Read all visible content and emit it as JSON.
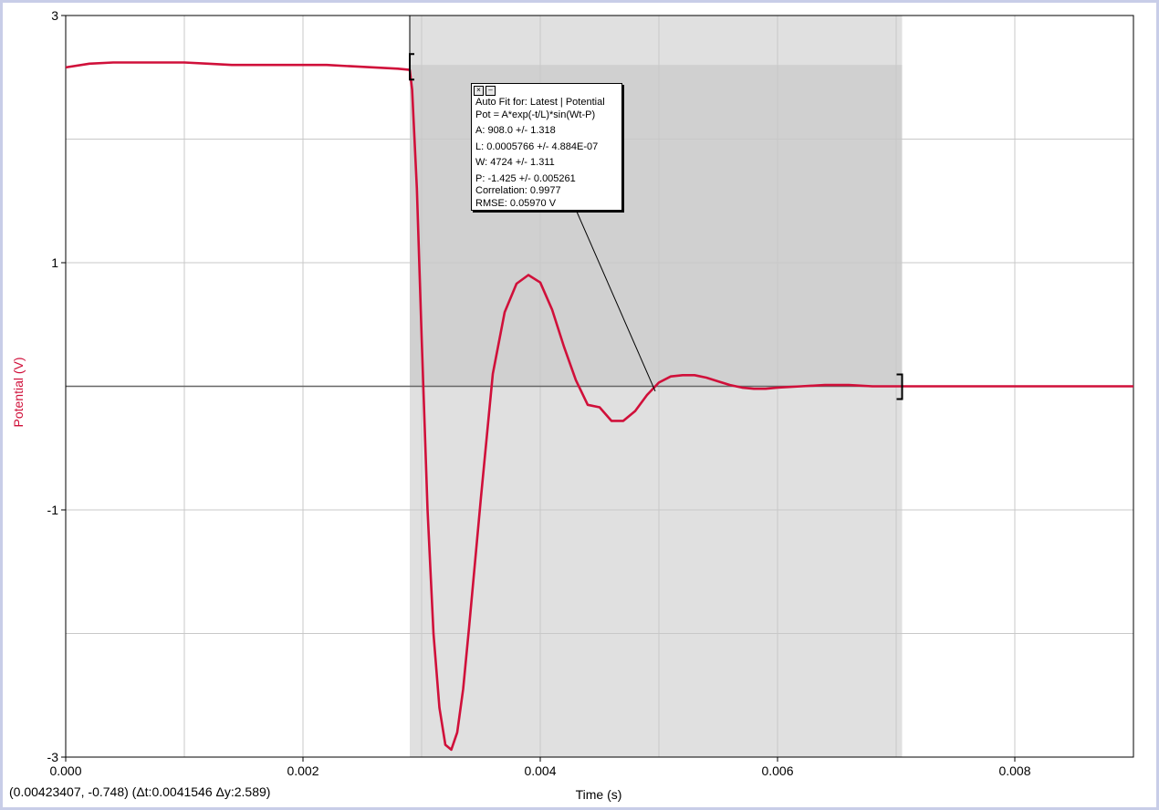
{
  "colors": {
    "series": "#d0103a",
    "selection_light": "#e0e0e0",
    "selection_dark": "#d0d0d0",
    "grid": "#c8c8c8",
    "window_border": "#c8cde8"
  },
  "chart_data": {
    "type": "line",
    "xlabel": "Time (s)",
    "ylabel": "Potential (V)",
    "xlim": [
      0.0,
      0.009
    ],
    "ylim": [
      -3,
      3
    ],
    "x_ticks": [
      "0.000",
      "0.002",
      "0.004",
      "0.006",
      "0.008"
    ],
    "x_tick_values": [
      0.0,
      0.002,
      0.004,
      0.006,
      0.008
    ],
    "y_ticks": [
      "3",
      "1",
      "-1",
      "-3"
    ],
    "y_tick_values": [
      3,
      1,
      -1,
      -3
    ],
    "grid": true,
    "zero_line": true,
    "selection_range": [
      0.0029,
      0.00705
    ],
    "series": [
      {
        "name": "Potential",
        "color": "#d0103a",
        "x": [
          0.0,
          0.0002,
          0.0004,
          0.0006,
          0.0008,
          0.001,
          0.0012,
          0.0014,
          0.0016,
          0.0018,
          0.002,
          0.0022,
          0.0024,
          0.0026,
          0.0028,
          0.0029,
          0.00292,
          0.00296,
          0.003,
          0.00305,
          0.0031,
          0.00315,
          0.0032,
          0.00325,
          0.0033,
          0.00335,
          0.0034,
          0.0035,
          0.0036,
          0.0037,
          0.0038,
          0.0039,
          0.004,
          0.0041,
          0.0042,
          0.0043,
          0.0044,
          0.0045,
          0.0046,
          0.0047,
          0.0048,
          0.0049,
          0.005,
          0.0051,
          0.0052,
          0.0053,
          0.0054,
          0.0055,
          0.0056,
          0.0057,
          0.0058,
          0.0059,
          0.006,
          0.0062,
          0.0064,
          0.0066,
          0.0068,
          0.007,
          0.0072,
          0.0074,
          0.0076,
          0.0078,
          0.008,
          0.0082,
          0.0084,
          0.0086,
          0.0088,
          0.009
        ],
        "y": [
          2.58,
          2.61,
          2.62,
          2.62,
          2.62,
          2.62,
          2.61,
          2.6,
          2.6,
          2.6,
          2.6,
          2.6,
          2.59,
          2.58,
          2.57,
          2.56,
          2.4,
          1.6,
          0.4,
          -1.0,
          -2.0,
          -2.6,
          -2.9,
          -2.94,
          -2.8,
          -2.45,
          -1.95,
          -0.9,
          0.1,
          0.6,
          0.83,
          0.9,
          0.84,
          0.62,
          0.32,
          0.05,
          -0.15,
          -0.17,
          -0.28,
          -0.28,
          -0.2,
          -0.07,
          0.03,
          0.08,
          0.09,
          0.09,
          0.07,
          0.04,
          0.01,
          -0.01,
          -0.02,
          -0.02,
          -0.01,
          0.0,
          0.01,
          0.01,
          0.0,
          0.0,
          0.0,
          0.0,
          0.0,
          0.0,
          0.0,
          0.0,
          0.0,
          0.0,
          0.0,
          0.0
        ]
      }
    ]
  },
  "fit_box": {
    "close_glyph": "×",
    "min_glyph": "–",
    "line1": "Auto Fit for: Latest | Potential",
    "line2": "Pot = A*exp(-t/L)*sin(Wt-P)",
    "line3": "A: 908.0 +/- 1.318",
    "line4": "L: 0.0005766 +/- 4.884E-07",
    "line5": "W: 4724 +/- 1.311",
    "line6": "P: -1.425 +/- 0.005261",
    "line7": "Correlation: 0.9977",
    "line8": "RMSE: 0.05970 V"
  },
  "status_bar": {
    "text": "(0.00423407, -0.748) (Δt:0.0041546 Δy:2.589)"
  }
}
